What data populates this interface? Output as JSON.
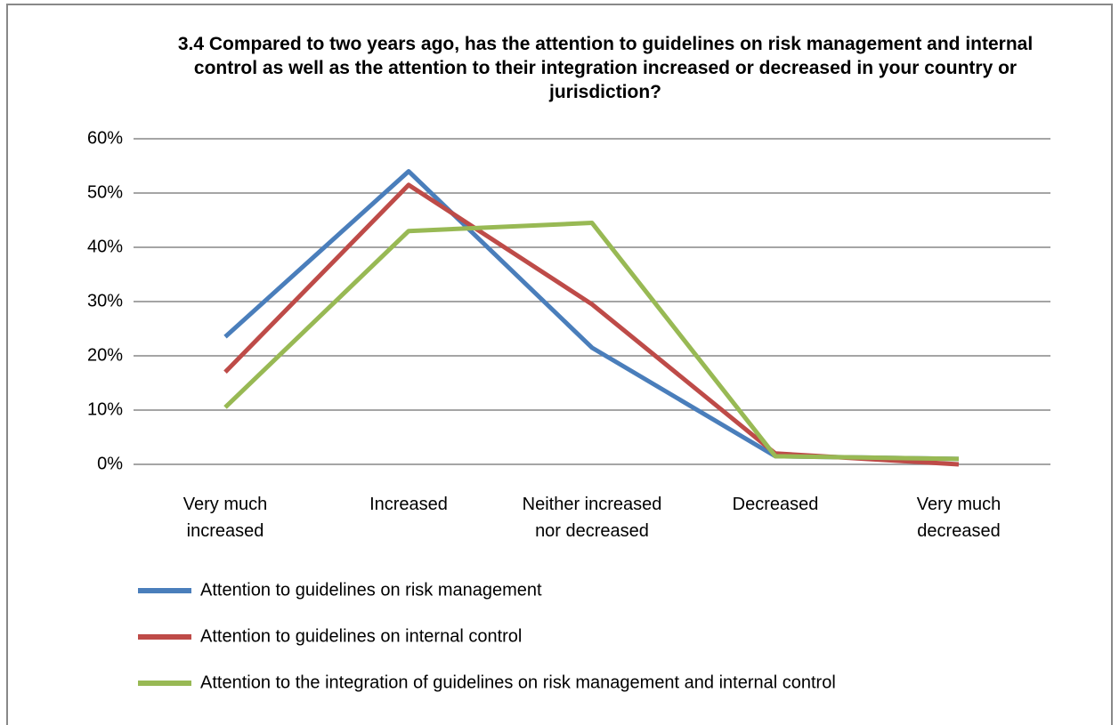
{
  "chart_data": {
    "type": "line",
    "title": "3.4 Compared to two years ago, has the attention to guidelines on risk management and internal control as well as the attention to their integration increased or decreased in your country or jurisdiction?",
    "categories": [
      "Very much increased",
      "Increased",
      "Neither increased nor decreased",
      "Decreased",
      "Very much decreased"
    ],
    "series": [
      {
        "name": "Attention to guidelines on risk management",
        "color": "#4a7ebb",
        "values": [
          23.5,
          54,
          21.5,
          1.5,
          1
        ]
      },
      {
        "name": "Attention to guidelines on internal control",
        "color": "#be4b48",
        "values": [
          17,
          51.5,
          29.5,
          2,
          0
        ]
      },
      {
        "name": "Attention to the integration of guidelines on risk management and internal control",
        "color": "#98b954",
        "values": [
          10.5,
          43,
          44.5,
          1.5,
          1
        ]
      }
    ],
    "ylim": [
      0,
      60
    ],
    "yticks": [
      {
        "value": 0,
        "label": "0%"
      },
      {
        "value": 10,
        "label": "10%"
      },
      {
        "value": 20,
        "label": "20%"
      },
      {
        "value": 30,
        "label": "30%"
      },
      {
        "value": 40,
        "label": "40%"
      },
      {
        "value": 50,
        "label": "50%"
      },
      {
        "value": 60,
        "label": "60%"
      }
    ],
    "grid": true,
    "legend": "bottom"
  }
}
